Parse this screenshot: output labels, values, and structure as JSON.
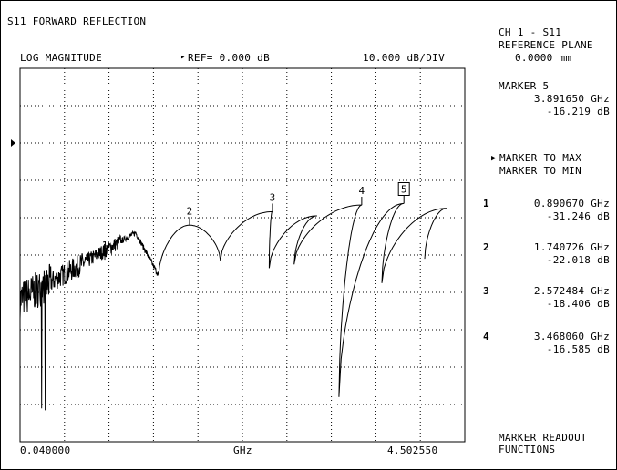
{
  "header": {
    "title": "S11 FORWARD REFLECTION",
    "format": "LOG MAGNITUDE",
    "ref_marker": "▸",
    "ref": "REF= 0.000 dB",
    "scale": "10.000 dB/DIV"
  },
  "footer": {
    "start": "0.040000",
    "unit": "GHz",
    "stop": "4.502550"
  },
  "side": {
    "channel": "CH 1 - S11",
    "ref_plane_label": "REFERENCE PLANE",
    "ref_plane_value": "0.0000 mm",
    "active_marker_label": "MARKER 5",
    "active_marker_freq": "3.891650 GHz",
    "active_marker_val": "-16.219 dB"
  },
  "softkeys": {
    "to_max": "MARKER TO MAX",
    "to_min": "MARKER TO MIN",
    "readout_line1": "MARKER READOUT",
    "readout_line2": "FUNCTIONS"
  },
  "markers": [
    {
      "num": "1",
      "freq": "0.890670 GHz",
      "val": "-31.246 dB"
    },
    {
      "num": "2",
      "freq": "1.740726 GHz",
      "val": "-22.018 dB"
    },
    {
      "num": "3",
      "freq": "2.572484 GHz",
      "val": "-18.406 dB"
    },
    {
      "num": "4",
      "freq": "3.468060 GHz",
      "val": "-16.585 dB"
    }
  ],
  "chart_data": {
    "type": "line",
    "title": "S11 FORWARD REFLECTION",
    "xlabel": "GHz",
    "ylabel": "LOG MAGNITUDE",
    "xlim": [
      0.04,
      4.50255
    ],
    "ylim": [
      -80,
      20
    ],
    "grid": true,
    "x_divisions": 10,
    "y_divisions": 10,
    "reference_dB": 0,
    "scale_dB_per_div": 10,
    "marker_points": [
      {
        "label": "1",
        "x": 0.89067,
        "y": -31.246
      },
      {
        "label": "2",
        "x": 1.740726,
        "y": -22.018
      },
      {
        "label": "3",
        "x": 2.572484,
        "y": -18.406
      },
      {
        "label": "4",
        "x": 3.46806,
        "y": -16.585
      },
      {
        "label": "5",
        "x": 3.89165,
        "y": -16.219,
        "active": true
      }
    ],
    "peaks": [
      {
        "x": 1.74,
        "y": -22.0
      },
      {
        "x": 2.57,
        "y": -18.4
      },
      {
        "x": 3.02,
        "y": -19.5
      },
      {
        "x": 3.47,
        "y": -16.6
      },
      {
        "x": 3.89,
        "y": -16.2
      },
      {
        "x": 4.32,
        "y": -17.5
      }
    ],
    "nulls": [
      {
        "x": 1.43,
        "y": -35.5
      },
      {
        "x": 2.05,
        "y": -31.5
      },
      {
        "x": 2.54,
        "y": -33.5
      },
      {
        "x": 2.79,
        "y": -32.5
      },
      {
        "x": 3.24,
        "y": -68.0
      },
      {
        "x": 3.67,
        "y": -37.5
      },
      {
        "x": 4.1,
        "y": -31.0
      },
      {
        "x": 4.50255,
        "y": -24.0
      }
    ]
  }
}
